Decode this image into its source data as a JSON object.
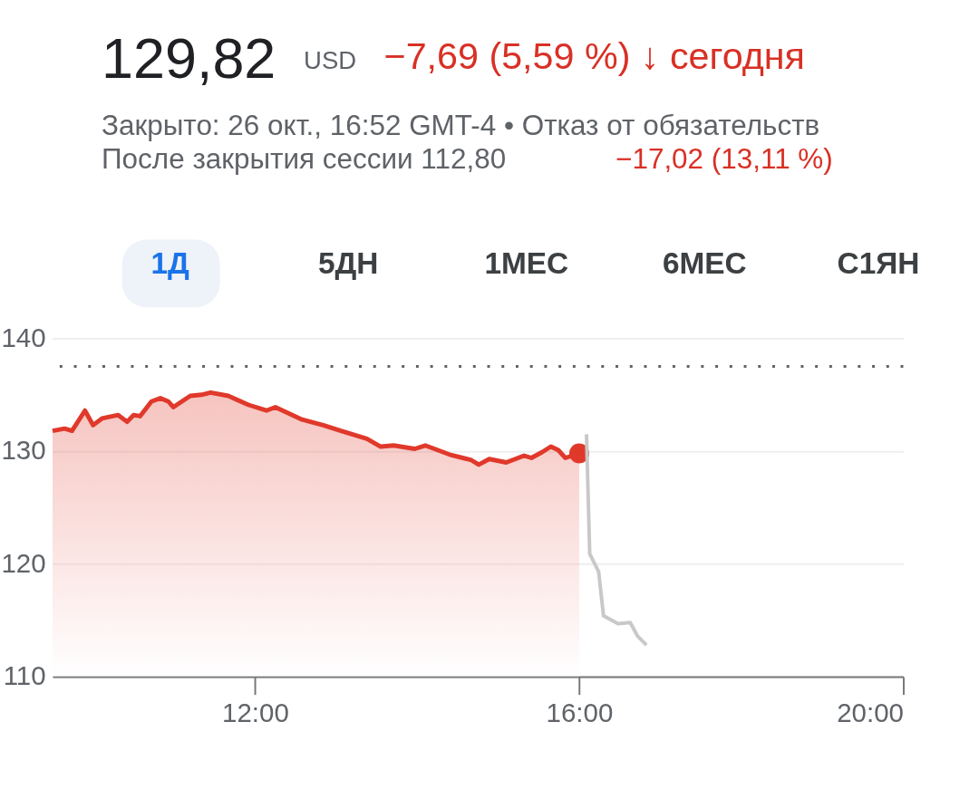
{
  "chart_data": {
    "type": "area",
    "title": "129,82",
    "subtitle": "Закрыто: 26 окт., 16:52 GMT-4 • Отказ от обязательств",
    "annotations": [
      "USD",
      "−7,69 (5,59 %) ↓ сегодня",
      "После закрытия сессии 112,80",
      "−17,02 (13,11 %)",
      "1Д",
      "5ДН",
      "1МЕС",
      "6МЕС",
      "С1ЯН"
    ],
    "series": [
      {
        "color": "#e0392b",
        "x": [
          9.5,
          9.65,
          9.74,
          9.9,
          10.0,
          10.11,
          10.31,
          10.42,
          10.5,
          10.58,
          10.72,
          10.83,
          10.93,
          10.99,
          11.2,
          11.34,
          11.45,
          11.67,
          11.92,
          12.14,
          12.25,
          12.4,
          12.58,
          12.84,
          13.06,
          13.38,
          13.55,
          13.71,
          13.97,
          14.1,
          14.4,
          14.67,
          14.76,
          14.89,
          15.1,
          15.32,
          15.41,
          15.54,
          15.65,
          15.74,
          15.83,
          16.0
        ],
        "values": [
          131.8,
          132.0,
          131.8,
          133.6,
          132.3,
          132.9,
          133.2,
          132.6,
          133.2,
          133.1,
          134.4,
          134.7,
          134.4,
          133.9,
          134.9,
          135.0,
          135.2,
          134.9,
          134.1,
          133.6,
          133.9,
          133.4,
          132.8,
          132.3,
          131.8,
          131.1,
          130.4,
          130.5,
          130.2,
          130.5,
          129.7,
          129.2,
          128.8,
          129.3,
          129.0,
          129.6,
          129.4,
          129.9,
          130.4,
          130.1,
          129.4,
          129.8
        ]
      },
      {
        "type": "scatter",
        "color": "#e0392b",
        "marker": "circle",
        "x": [
          16.0
        ],
        "values": [
          129.8
        ]
      },
      {
        "type": "line",
        "color": "#c8c8c8",
        "x": [
          16.09,
          16.13,
          16.24,
          16.3,
          16.48,
          16.63,
          16.72,
          16.83
        ],
        "values": [
          131.5,
          120.9,
          119.3,
          115.4,
          114.7,
          114.8,
          113.6,
          112.8
        ]
      }
    ],
    "xlim": [
      9.5,
      20
    ],
    "xticks": [
      {
        "value": 12,
        "label": "12:00"
      },
      {
        "value": 16,
        "label": "16:00"
      },
      {
        "value": 20,
        "label": "20:00"
      }
    ],
    "ylim": [
      110,
      140
    ],
    "yticks": [
      110,
      120,
      130,
      140
    ],
    "ref_lines": [
      {
        "axis": "y",
        "value": 137.51,
        "label": null,
        "color": "#5f6368",
        "line_style": "dotted"
      }
    ],
    "grid": "y"
  }
}
